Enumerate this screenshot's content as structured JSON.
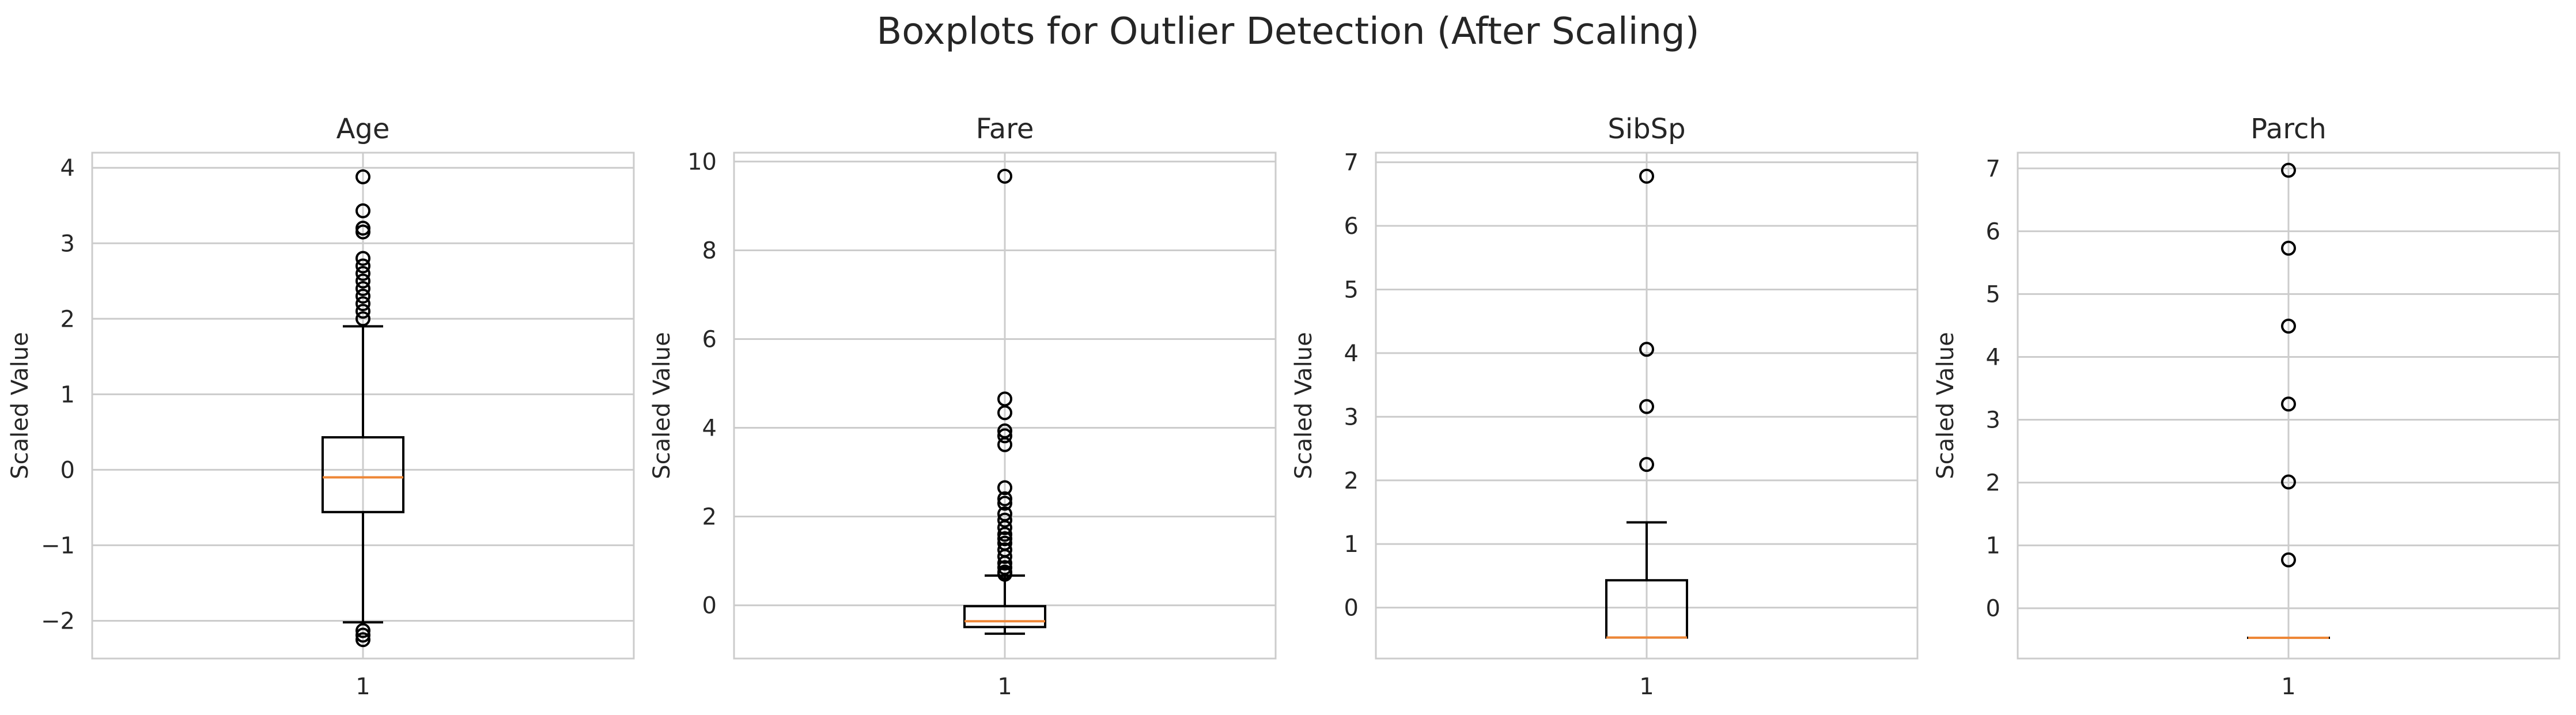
{
  "figure": {
    "suptitle": "Boxplots for Outlier Detection (After Scaling)",
    "ylabel": "Scaled Value",
    "colors": {
      "grid": "#cccccc",
      "spine": "#cccccc",
      "box": "#000000",
      "median": "#ee8636",
      "text": "#262626"
    }
  },
  "chart_data": [
    {
      "type": "boxplot",
      "title": "Age",
      "ylabel": "Scaled Value",
      "xticks": [
        "1"
      ],
      "ylim": [
        -2.5,
        4.2
      ],
      "yticks": [
        -2,
        -1,
        0,
        1,
        2,
        3,
        4
      ],
      "grid": true,
      "box": {
        "whisker_low": -2.02,
        "q1": -0.56,
        "median": -0.1,
        "q3": 0.43,
        "whisker_high": 1.9
      },
      "outliers": [
        3.88,
        3.43,
        3.2,
        3.15,
        2.8,
        2.7,
        2.6,
        2.5,
        2.4,
        2.3,
        2.2,
        2.1,
        2.0,
        -2.13,
        -2.19,
        -2.25
      ]
    },
    {
      "type": "boxplot",
      "title": "Fare",
      "ylabel": "Scaled Value",
      "xticks": [
        "1"
      ],
      "ylim": [
        -1.2,
        10.2
      ],
      "yticks": [
        0,
        2,
        4,
        6,
        8,
        10
      ],
      "grid": true,
      "box": {
        "whisker_low": -0.64,
        "q1": -0.49,
        "median": -0.36,
        "q3": -0.02,
        "whisker_high": 0.67
      },
      "outliers": [
        9.67,
        4.65,
        4.34,
        3.93,
        3.82,
        3.62,
        2.65,
        2.4,
        2.3,
        2.06,
        1.92,
        1.75,
        1.6,
        1.5,
        1.4,
        1.25,
        1.1,
        0.95,
        0.85,
        0.75,
        0.7
      ]
    },
    {
      "type": "boxplot",
      "title": "SibSp",
      "ylabel": "Scaled Value",
      "xticks": [
        "1"
      ],
      "ylim": [
        -0.8,
        7.15
      ],
      "yticks": [
        0,
        1,
        2,
        3,
        4,
        5,
        6,
        7
      ],
      "grid": true,
      "box": {
        "whisker_low": -0.47,
        "q1": -0.47,
        "median": -0.47,
        "q3": 0.43,
        "whisker_high": 1.34
      },
      "outliers": [
        6.78,
        4.06,
        3.16,
        2.25
      ]
    },
    {
      "type": "boxplot",
      "title": "Parch",
      "ylabel": "Scaled Value",
      "xticks": [
        "1"
      ],
      "ylim": [
        -0.8,
        7.25
      ],
      "yticks": [
        0,
        1,
        2,
        3,
        4,
        5,
        6,
        7
      ],
      "grid": true,
      "box": {
        "whisker_low": -0.47,
        "q1": -0.47,
        "median": -0.47,
        "q3": -0.47,
        "whisker_high": -0.47
      },
      "outliers": [
        6.97,
        5.73,
        4.49,
        3.25,
        2.01,
        0.77
      ]
    }
  ]
}
